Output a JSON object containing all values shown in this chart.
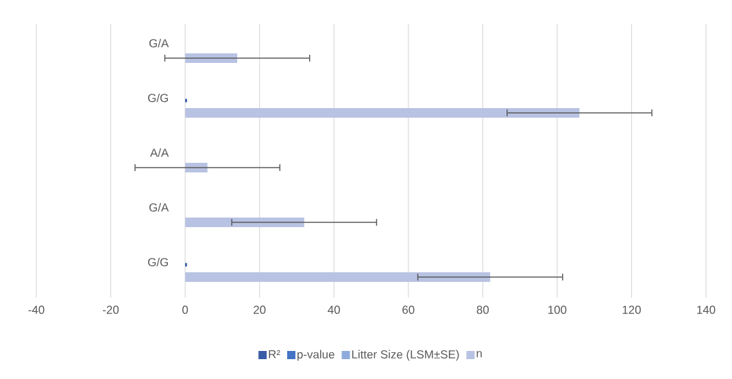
{
  "chart_data": {
    "type": "bar",
    "orientation": "horizontal",
    "categories": [
      "G/A",
      "G/G",
      "A/A",
      "G/A",
      "G/G"
    ],
    "series": [
      {
        "name": "R²",
        "color": "#3a5ca8",
        "values": [
          0,
          0.5,
          0,
          0,
          0.5
        ]
      },
      {
        "name": "p-value",
        "color": "#4472c4",
        "values": [
          0,
          0,
          0,
          0,
          0
        ]
      },
      {
        "name": "Litter Size (LSM±SE)",
        "color": "#8faadc",
        "values": [
          0,
          0,
          0,
          0,
          0
        ]
      },
      {
        "name": "n",
        "color": "#b8c2e3",
        "values": [
          14,
          106,
          6,
          32,
          82
        ],
        "errors": [
          19.6,
          19.6,
          19.6,
          19.6,
          19.6
        ]
      }
    ],
    "xlim": [
      -40,
      140
    ],
    "xticks": [
      -40,
      -20,
      0,
      20,
      40,
      60,
      80,
      100,
      120,
      140
    ],
    "grid": "x",
    "legend": "bottom"
  }
}
